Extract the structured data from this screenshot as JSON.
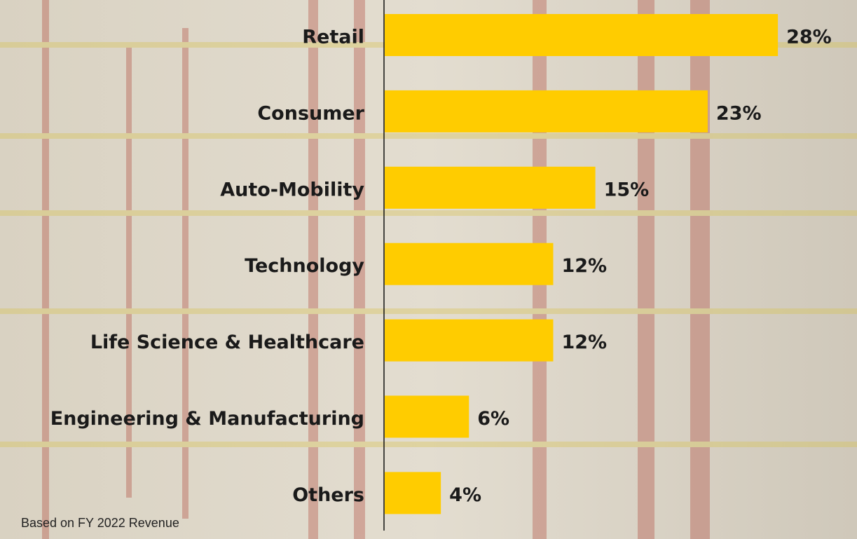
{
  "chart_data": {
    "type": "bar",
    "orientation": "horizontal",
    "categories": [
      "Retail",
      "Consumer",
      "Auto-Mobility",
      "Technology",
      "Life Science & Healthcare",
      "Engineering & Manufacturing",
      "Others"
    ],
    "values": [
      28,
      23,
      15,
      12,
      12,
      6,
      4
    ],
    "value_labels": [
      "28%",
      "23%",
      "15%",
      "12%",
      "12%",
      "6%",
      "4%"
    ],
    "color": "#ffcc00",
    "note": "Based on FY 2022 Revenue"
  }
}
